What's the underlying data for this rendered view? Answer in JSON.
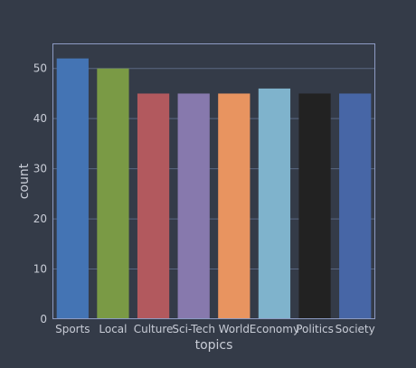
{
  "chart_data": {
    "type": "bar",
    "categories": [
      "Sports",
      "Local",
      "Culture",
      "Sci-Tech",
      "World",
      "Economy",
      "Politics",
      "Society"
    ],
    "values": [
      52,
      50,
      45,
      45,
      45,
      46,
      45,
      45
    ],
    "colors": [
      "#4474b4",
      "#7a9a45",
      "#b2595e",
      "#8779ad",
      "#e89460",
      "#7fb3cc",
      "#222222",
      "#4766a6"
    ],
    "title": "",
    "xlabel": "topics",
    "ylabel": "count",
    "ylim": [
      0,
      55
    ],
    "yticks": [
      0,
      10,
      20,
      30,
      40,
      50
    ],
    "grid": true
  },
  "theme": {
    "background": "#343b48",
    "plot_background": "#343b48",
    "frame_color": "#8d9bc3",
    "grid_color": "#5b6882",
    "text_color": "#c8ccd6"
  }
}
